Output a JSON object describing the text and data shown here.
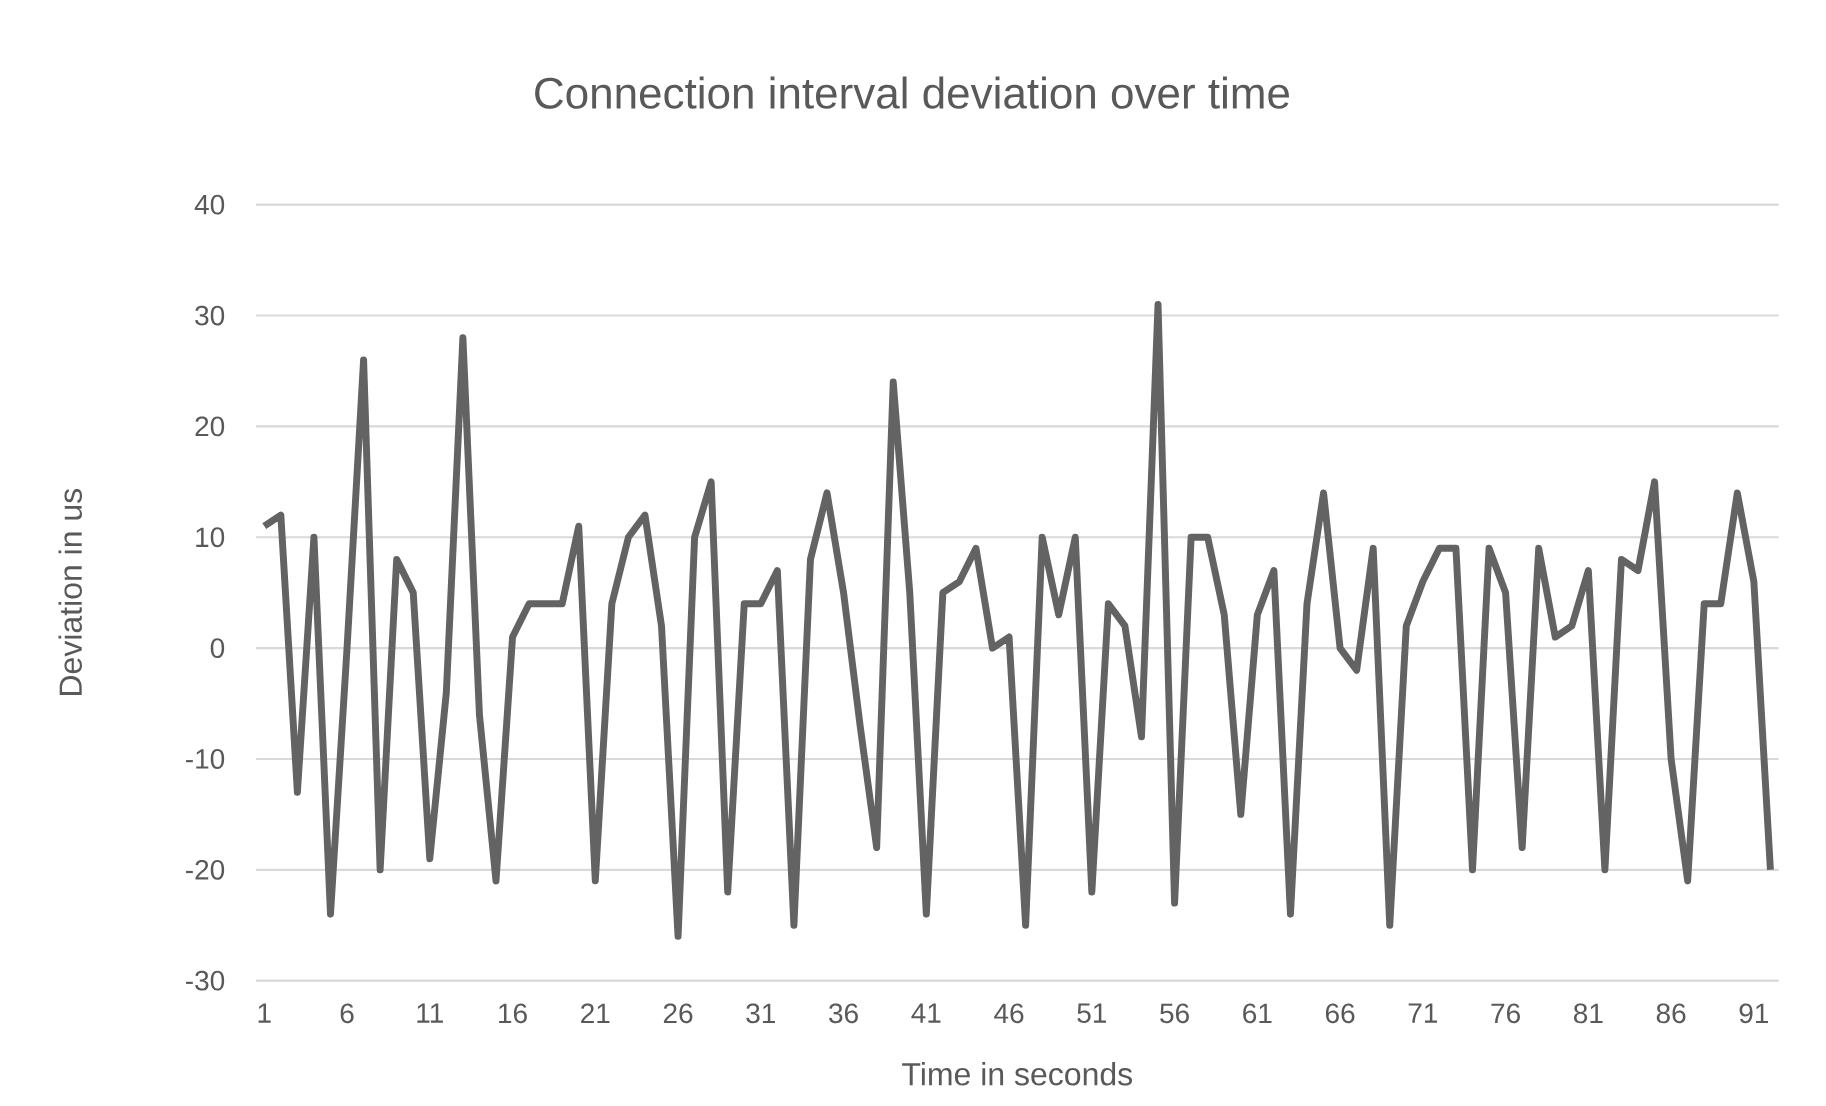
{
  "chart_data": {
    "type": "line",
    "title": "Connection interval deviation over time",
    "xlabel": "Time in seconds",
    "ylabel": "Deviation in us",
    "categories": [
      "1",
      null,
      null,
      null,
      null,
      "6",
      null,
      null,
      null,
      null,
      "11",
      null,
      null,
      null,
      null,
      "16",
      null,
      null,
      null,
      null,
      "21",
      null,
      null,
      null,
      null,
      "26",
      null,
      null,
      null,
      null,
      "31",
      null,
      null,
      null,
      null,
      "36",
      null,
      null,
      null,
      null,
      "41",
      null,
      null,
      null,
      null,
      "46",
      null,
      null,
      null,
      null,
      "51",
      null,
      null,
      null,
      null,
      "56",
      null,
      null,
      null,
      null,
      "61",
      null,
      null,
      null,
      null,
      "66",
      null,
      null,
      null,
      null,
      "71",
      null,
      null,
      null,
      null,
      "76",
      null,
      null,
      null,
      null,
      "81",
      null,
      null,
      null,
      null,
      "86",
      null,
      null,
      null,
      null,
      "91",
      null
    ],
    "values": [
      11,
      12,
      -13,
      10,
      -24,
      0,
      26,
      -20,
      8,
      5,
      -19,
      -4,
      28,
      -6,
      -21,
      1,
      4,
      4,
      4,
      11,
      -21,
      4,
      10,
      12,
      2,
      -26,
      10,
      15,
      -22,
      4,
      4,
      7,
      -25,
      8,
      14,
      5,
      -7,
      -18,
      24,
      5,
      -24,
      5,
      6,
      9,
      0,
      1,
      -25,
      10,
      3,
      10,
      -22,
      4,
      2,
      -8,
      31,
      -23,
      10,
      10,
      3,
      -15,
      3,
      7,
      -24,
      4,
      14,
      0,
      -2,
      9,
      -25,
      2,
      6,
      9,
      9,
      -20,
      9,
      5,
      -18,
      9,
      1,
      2,
      7,
      -20,
      8,
      7,
      15,
      -10,
      -21,
      4,
      4,
      14,
      6,
      -20
    ],
    "color": "#636363",
    "ylim": [
      -30,
      40
    ],
    "yticks": [
      -30,
      -20,
      -10,
      0,
      10,
      20,
      30,
      40
    ],
    "grid": "y"
  }
}
